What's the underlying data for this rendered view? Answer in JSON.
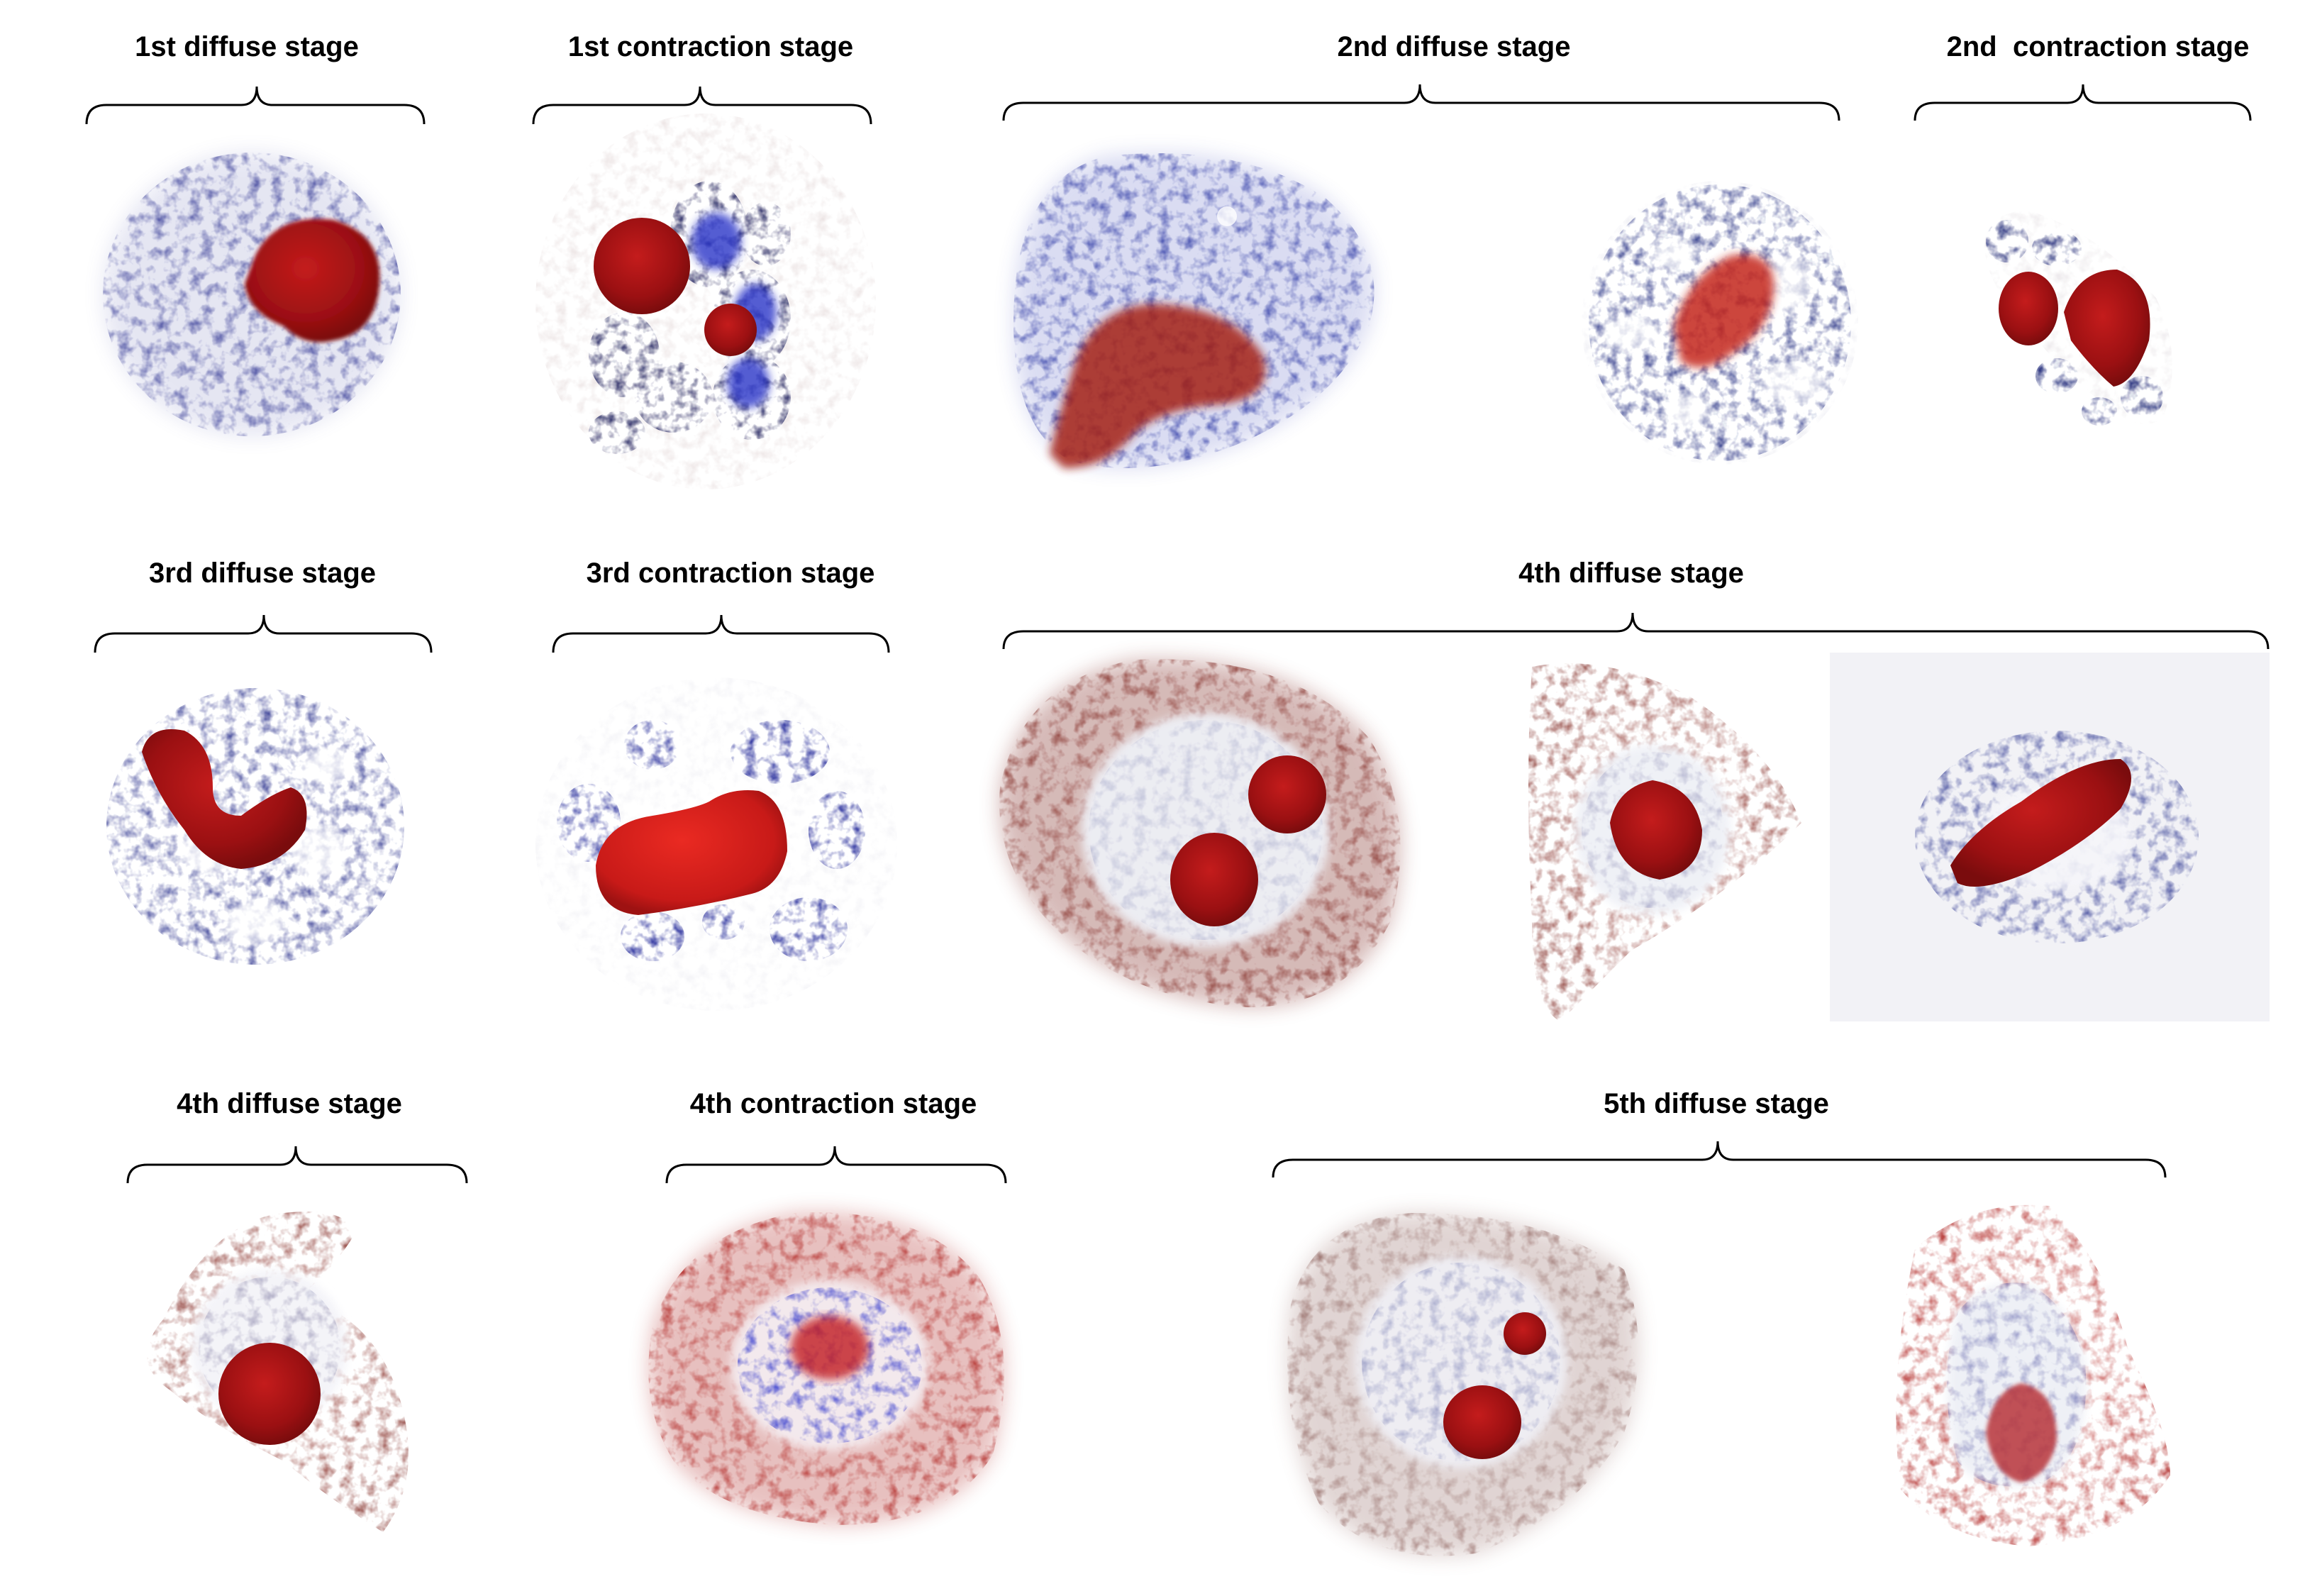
{
  "labels": {
    "r1_a": "1st diffuse stage",
    "r1_b": "1st contraction stage",
    "r1_c": "2nd diffuse stage",
    "r1_d": "2nd  contraction stage",
    "r2_a": "3rd diffuse stage",
    "r2_b": "3rd contraction stage",
    "r2_c": "4th diffuse stage",
    "r3_a": "4th diffuse stage",
    "r3_b": "4th contraction stage",
    "r3_c": "5th diffuse stage"
  },
  "colors": {
    "chromatin_blue": "#2a2f8f",
    "nucleolus_red": "#b3151a",
    "cytoplasm_brown": "#8a3a34",
    "bracket": "#000000"
  }
}
